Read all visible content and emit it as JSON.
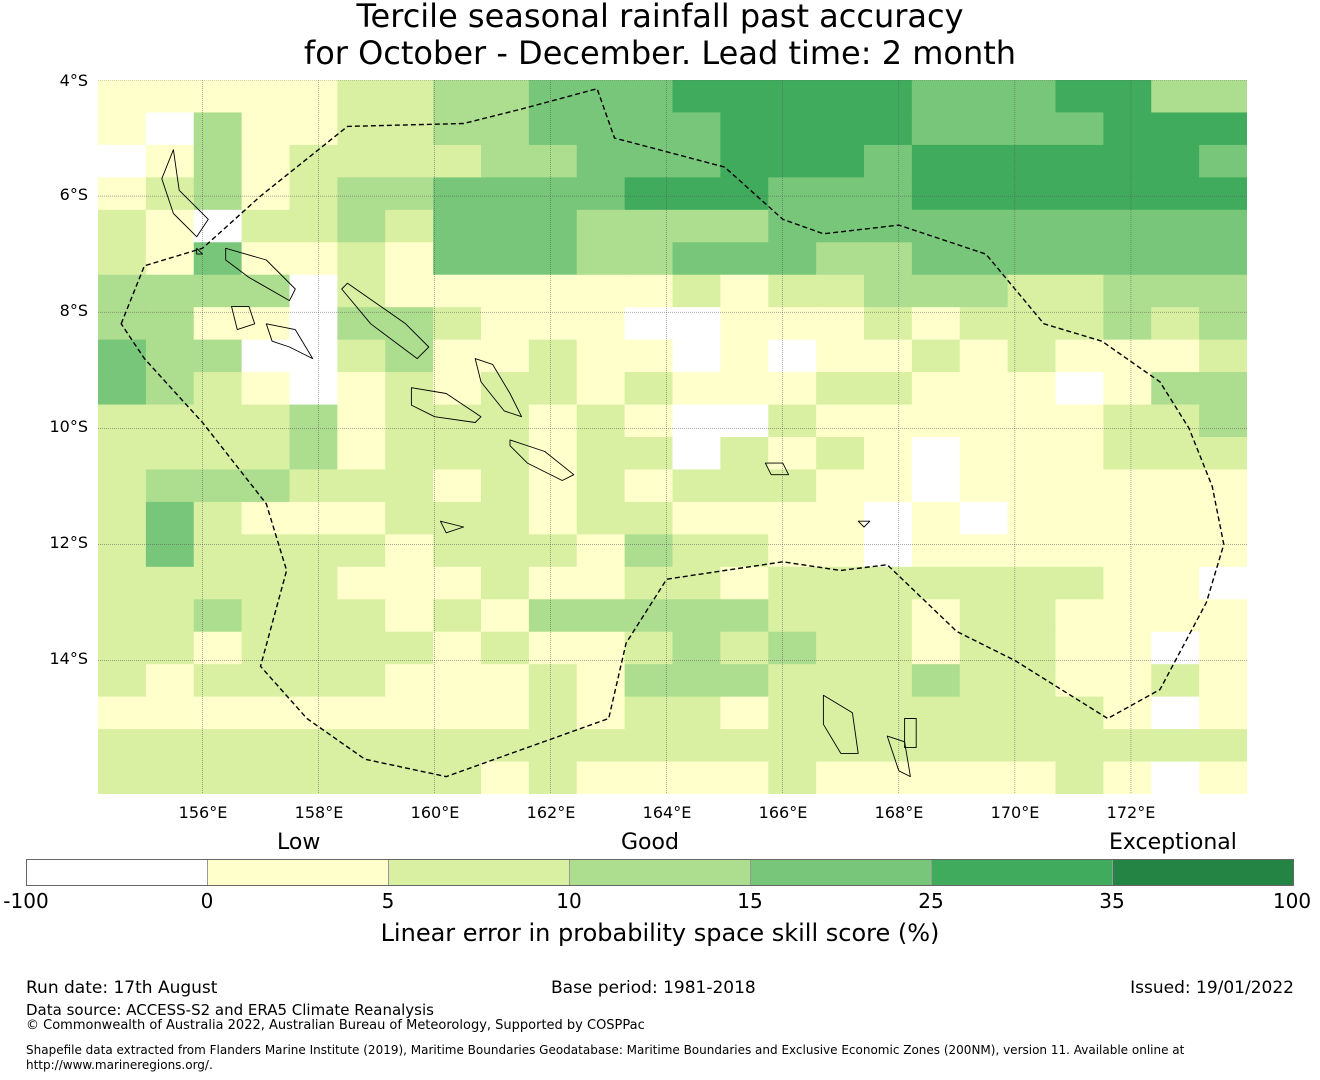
{
  "title": {
    "line1": "Tercile seasonal rainfall past accuracy",
    "line2": "for October - December. Lead time: 2 month"
  },
  "map": {
    "lat_labels": [
      "4°S",
      "6°S",
      "8°S",
      "10°S",
      "12°S",
      "14°S"
    ],
    "lon_labels": [
      "156°E",
      "158°E",
      "160°E",
      "162°E",
      "164°E",
      "166°E",
      "168°E",
      "170°E",
      "172°E"
    ],
    "extent": {
      "lon_min": 154.2,
      "lon_max": 174.0,
      "lat_north": -4.0,
      "lat_south": -16.3
    },
    "grid_columns": 24,
    "grid_rows": 22,
    "skill_class_rows": [
      "111112233444555554445533",
      "103112233444455554444555",
      "013122223344455545555554",
      "123123344445554445555555",
      "210223244433334444444444",
      "214112144433444334444444",
      "333302111111212233322333",
      "331103321110011121222323",
      "433002311211010112121112",
      "432101212212111221110133",
      "222231222121002111111223",
      "222231222122021210111222",
      "233322212121222110111111",
      "242111222122111101011111",
      "242222122213221101111111",
      "222221112112212222222110",
      "223222121333332221221111",
      "221222212112323221221101",
      "212222111213332223221121",
      "111111111212212222222101",
      "222222222222222222222222",
      "222222221211112111112101"
    ],
    "class_colors": [
      "#ffffff",
      "#ffffcc",
      "#d9f0a3",
      "#addd8e",
      "#78c679",
      "#41ab5d",
      "#238443"
    ],
    "boundary": [
      [
        154.6,
        -8.2
      ],
      [
        155.0,
        -7.2
      ],
      [
        156.0,
        -6.9
      ],
      [
        157.0,
        -6.0
      ],
      [
        158.0,
        -5.2
      ],
      [
        158.5,
        -4.8
      ],
      [
        160.5,
        -4.75
      ],
      [
        161.5,
        -4.5
      ],
      [
        162.8,
        -4.15
      ],
      [
        163.1,
        -5.0
      ],
      [
        165.0,
        -5.5
      ],
      [
        166.0,
        -6.4
      ],
      [
        166.7,
        -6.65
      ],
      [
        168.0,
        -6.5
      ],
      [
        169.5,
        -7.0
      ],
      [
        170.5,
        -8.2
      ],
      [
        171.5,
        -8.5
      ],
      [
        172.5,
        -9.2
      ],
      [
        173.0,
        -10.0
      ],
      [
        173.4,
        -11.0
      ],
      [
        173.6,
        -12.0
      ],
      [
        173.3,
        -13.0
      ],
      [
        172.5,
        -14.5
      ],
      [
        171.6,
        -15.0
      ],
      [
        170.8,
        -14.5
      ],
      [
        170.0,
        -14.0
      ],
      [
        169.0,
        -13.5
      ],
      [
        167.8,
        -12.35
      ],
      [
        167.0,
        -12.45
      ],
      [
        166.0,
        -12.3
      ],
      [
        164.0,
        -12.6
      ],
      [
        163.3,
        -13.7
      ],
      [
        163.0,
        -15.0
      ],
      [
        160.2,
        -16.0
      ],
      [
        158.8,
        -15.7
      ],
      [
        157.8,
        -15.0
      ],
      [
        157.0,
        -14.1
      ],
      [
        157.45,
        -12.45
      ],
      [
        157.1,
        -11.3
      ],
      [
        156.0,
        -9.9
      ],
      [
        155.0,
        -8.8
      ],
      [
        154.6,
        -8.2
      ]
    ],
    "islands": [
      [
        [
          155.5,
          -5.2
        ],
        [
          155.6,
          -5.9
        ],
        [
          156.1,
          -6.4
        ],
        [
          155.9,
          -6.7
        ],
        [
          155.5,
          -6.3
        ],
        [
          155.3,
          -5.7
        ]
      ],
      [
        [
          156.4,
          -6.9
        ],
        [
          157.1,
          -7.1
        ],
        [
          157.6,
          -7.6
        ],
        [
          157.5,
          -7.8
        ],
        [
          156.8,
          -7.4
        ],
        [
          156.4,
          -7.1
        ]
      ],
      [
        [
          158.5,
          -7.5
        ],
        [
          159.5,
          -8.2
        ],
        [
          159.9,
          -8.6
        ],
        [
          159.7,
          -8.8
        ],
        [
          158.9,
          -8.2
        ],
        [
          158.4,
          -7.6
        ]
      ],
      [
        [
          160.7,
          -8.8
        ],
        [
          161.0,
          -8.9
        ],
        [
          161.3,
          -9.4
        ],
        [
          161.5,
          -9.8
        ],
        [
          161.2,
          -9.7
        ],
        [
          160.8,
          -9.2
        ]
      ],
      [
        [
          159.6,
          -9.3
        ],
        [
          160.2,
          -9.4
        ],
        [
          160.8,
          -9.8
        ],
        [
          160.7,
          -9.9
        ],
        [
          160.0,
          -9.8
        ],
        [
          159.6,
          -9.6
        ]
      ],
      [
        [
          161.3,
          -10.2
        ],
        [
          161.9,
          -10.4
        ],
        [
          162.4,
          -10.8
        ],
        [
          162.2,
          -10.9
        ],
        [
          161.6,
          -10.6
        ],
        [
          161.3,
          -10.3
        ]
      ],
      [
        [
          157.1,
          -8.2
        ],
        [
          157.6,
          -8.3
        ],
        [
          157.9,
          -8.8
        ],
        [
          157.5,
          -8.6
        ],
        [
          157.2,
          -8.5
        ]
      ],
      [
        [
          156.5,
          -7.9
        ],
        [
          156.8,
          -7.9
        ],
        [
          156.9,
          -8.2
        ],
        [
          156.6,
          -8.3
        ]
      ],
      [
        [
          166.7,
          -14.6
        ],
        [
          167.2,
          -14.9
        ],
        [
          167.3,
          -15.6
        ],
        [
          167.0,
          -15.6
        ],
        [
          166.7,
          -15.1
        ]
      ],
      [
        [
          167.8,
          -15.3
        ],
        [
          168.1,
          -15.4
        ],
        [
          168.2,
          -16.0
        ],
        [
          168.0,
          -15.9
        ]
      ],
      [
        [
          168.1,
          -15.0
        ],
        [
          168.3,
          -15.0
        ],
        [
          168.3,
          -15.5
        ],
        [
          168.1,
          -15.5
        ]
      ],
      [
        [
          165.7,
          -10.6
        ],
        [
          166.0,
          -10.6
        ],
        [
          166.1,
          -10.8
        ],
        [
          165.8,
          -10.8
        ]
      ],
      [
        [
          160.1,
          -11.6
        ],
        [
          160.5,
          -11.7
        ],
        [
          160.2,
          -11.8
        ]
      ],
      [
        [
          155.9,
          -6.9
        ],
        [
          156.0,
          -7.0
        ],
        [
          155.9,
          -7.0
        ]
      ],
      [
        [
          167.3,
          -11.6
        ],
        [
          167.5,
          -11.6
        ],
        [
          167.4,
          -11.7
        ]
      ]
    ]
  },
  "legend": {
    "category_labels": [
      "Low",
      "Good",
      "Exceptional"
    ],
    "tick_labels": [
      "-100",
      "0",
      "5",
      "10",
      "15",
      "25",
      "35",
      "100"
    ],
    "title": "Linear error in probability space skill score (%)"
  },
  "footer": {
    "run_date": "Run date: 17th August",
    "base_period": "Base period: 1981-2018",
    "issued": "Issued: 19/01/2022",
    "data_source": "Data source: ACCESS-S2 and ERA5 Climate Reanalysis",
    "copyright": "© Commonwealth of Australia 2022, Australian Bureau of Meteorology, Supported by COSPPac",
    "shapefile_line1": "Shapefile data extracted from Flanders Marine Institute (2019), Maritime Boundaries Geodatabase: Maritime Boundaries and Exclusive Economic Zones (200NM), version 11. Available online at",
    "shapefile_line2": "http://www.marineregions.org/."
  }
}
